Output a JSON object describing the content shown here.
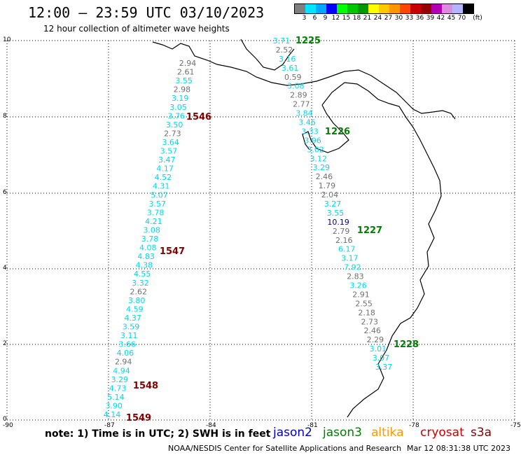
{
  "header": {
    "title": "12:00 – 23:59 UTC 03/10/2023",
    "subtitle": "12 hour collection of altimeter wave heights"
  },
  "legend": {
    "unit": "(ft)",
    "labels": [
      "3",
      "6",
      "9",
      "12",
      "15",
      "18",
      "21",
      "24",
      "27",
      "30",
      "33",
      "36",
      "39",
      "42",
      "45",
      "70"
    ],
    "colors": [
      "#7f7f7f",
      "#00e5ff",
      "#00a8ff",
      "#0000ff",
      "#00ff00",
      "#00c800",
      "#009600",
      "#ffff00",
      "#ffc800",
      "#ff9600",
      "#ff4600",
      "#c80000",
      "#960000",
      "#b400b4",
      "#dc8cdc",
      "#b4b4ff",
      "#000000"
    ]
  },
  "axes": {
    "y_labels": [
      "10",
      "8",
      "6",
      "4",
      "2",
      "0"
    ],
    "x_labels": [
      "-90",
      "-87",
      "-84",
      "-81",
      "-78",
      "-75"
    ]
  },
  "passes": [
    {
      "time": "1546",
      "color": "#800000"
    },
    {
      "time": "1547",
      "color": "#800000"
    },
    {
      "time": "1548",
      "color": "#800000"
    },
    {
      "time": "1549",
      "color": "#800000"
    },
    {
      "time": "1225",
      "color": "#008000"
    },
    {
      "time": "1226",
      "color": "#008000"
    },
    {
      "time": "1227",
      "color": "#008000"
    },
    {
      "time": "1228",
      "color": "#008000"
    }
  ],
  "track_west": [
    "2.94",
    "2.61",
    "3.55",
    "2.98",
    "3.19",
    "3.05",
    "3.76",
    "3.50",
    "2.73",
    "3.64",
    "3.57",
    "3.47",
    "4.17",
    "4.52",
    "4.31",
    "5.07",
    "3.57",
    "3.78",
    "4.21",
    "3.08",
    "3.78",
    "4.08",
    "4.83",
    "4.38",
    "4.55",
    "3.32",
    "2.62",
    "3.80",
    "4.59",
    "4.37",
    "3.59",
    "3.11",
    "3.66",
    "4.06",
    "2.94",
    "4.94",
    "3.29",
    "4.73",
    "5.14",
    "3.90",
    "4.14"
  ],
  "track_east": [
    "3.71",
    "2.52",
    "3.16",
    "3.61",
    "0.59",
    "3.08",
    "2.89",
    "2.77",
    "3.84",
    "3.46",
    "3.33",
    "3.96",
    "3.02",
    "3.12",
    "3.29",
    "2.46",
    "1.79",
    "2.04",
    "3.27",
    "3.55",
    "10.19",
    "2.79",
    "2.16",
    "6.17",
    "3.17",
    "7.92",
    "2.83",
    "3.26",
    "2.91",
    "2.55",
    "2.18",
    "2.73",
    "2.46",
    "2.29",
    "3.01",
    "3.07",
    "3.37"
  ],
  "footer": {
    "note": "note:  1) Time is in UTC;  2) SWH is in feet",
    "satellites": [
      {
        "name": "jason2",
        "color": "#0000cc"
      },
      {
        "name": "jason3",
        "color": "#008000"
      },
      {
        "name": "altika",
        "color": "#ff9900"
      },
      {
        "name": "cryosat",
        "color": "#cc0000"
      },
      {
        "name": "s3a",
        "color": "#800000"
      }
    ],
    "credit": "NOAA/NESDIS Center for Satellite Applications and Research",
    "timestamp": "Mar 12 08:31:38 UTC 2023"
  }
}
